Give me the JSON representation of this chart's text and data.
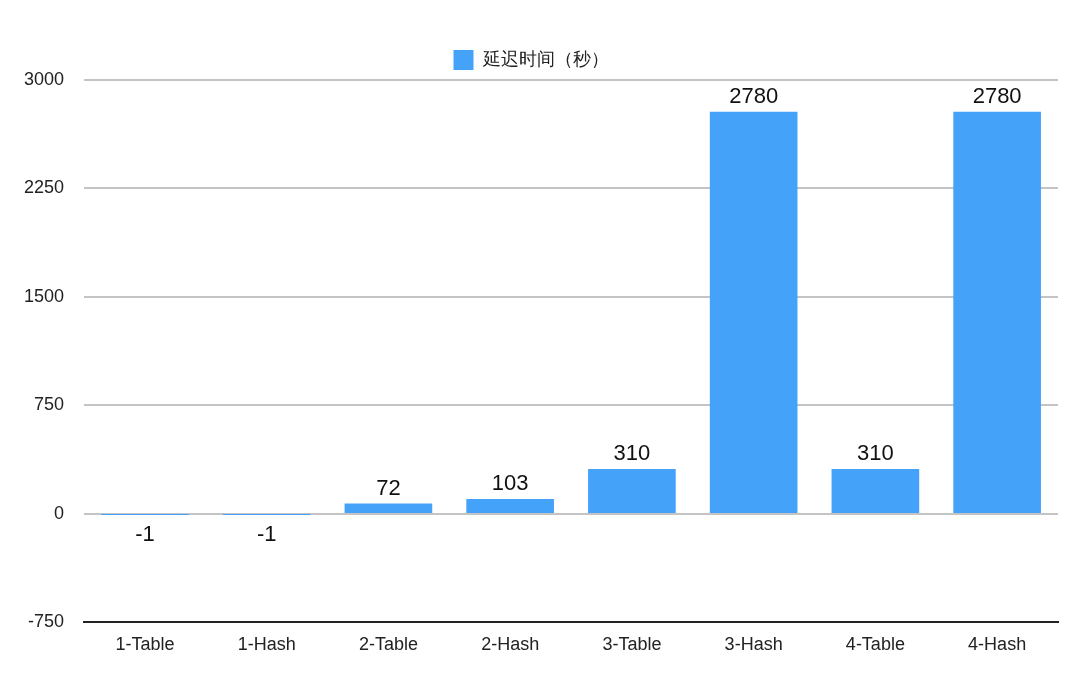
{
  "chart_data": {
    "type": "bar",
    "categories": [
      "1-Table",
      "1-Hash",
      "2-Table",
      "2-Hash",
      "3-Table",
      "3-Hash",
      "4-Table",
      "4-Hash"
    ],
    "series": [
      {
        "name": "延迟时间（秒）",
        "color": "#44a3f8",
        "values": [
          -1,
          -1,
          72,
          103,
          310,
          2780,
          310,
          2780
        ]
      }
    ],
    "ylim": [
      -750,
      3000
    ],
    "yticks": [
      -750,
      0,
      750,
      1500,
      2250,
      3000
    ],
    "grid": "y",
    "legend": "top",
    "data_labels": true
  }
}
